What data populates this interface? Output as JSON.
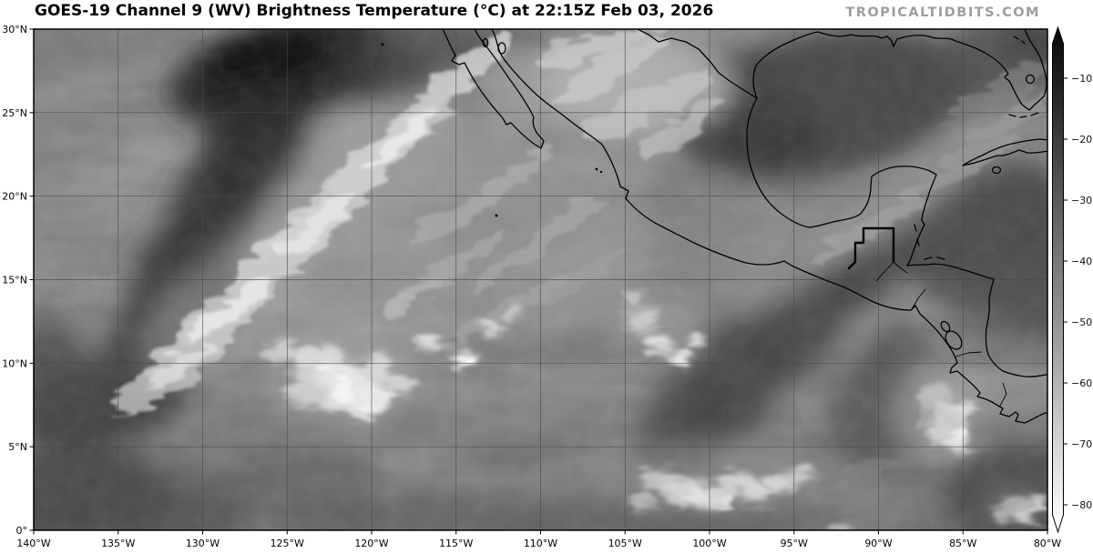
{
  "header": {
    "title": "GOES-19 Channel 9 (WV) Brightness Temperature (°C) at 22:15Z Feb 03, 2026",
    "watermark": "TROPICALTIDBITS.COM"
  },
  "axes": {
    "x": {
      "tick_lons": [
        140,
        135,
        130,
        125,
        120,
        115,
        110,
        105,
        100,
        95,
        90,
        85,
        80
      ],
      "labels": [
        "140°W",
        "135°W",
        "130°W",
        "125°W",
        "120°W",
        "115°W",
        "110°W",
        "105°W",
        "100°W",
        "95°W",
        "90°W",
        "85°W",
        "80°W"
      ]
    },
    "y": {
      "tick_lats": [
        30,
        25,
        20,
        15,
        10,
        5,
        0
      ],
      "labels": [
        "30°N",
        "25°N",
        "20°N",
        "15°N",
        "10°N",
        "5°N",
        "0°"
      ]
    }
  },
  "colorbar": {
    "tick_values": [
      -10,
      -20,
      -30,
      -40,
      -50,
      -60,
      -70,
      -80
    ],
    "tick_labels": [
      "−10",
      "−20",
      "−30",
      "−40",
      "−50",
      "−60",
      "−70",
      "−80"
    ]
  },
  "map_extent": {
    "lon_west": "140°W",
    "lon_east": "80°W",
    "lat_south": "0°",
    "lat_north": "30°N",
    "grid_interval_deg": 5
  },
  "colors": {
    "coastline": "#000000",
    "gridline": "#4a4a4a",
    "watermark": "#9e9e9e",
    "ocean_base_gray": "#8c8c8c"
  }
}
